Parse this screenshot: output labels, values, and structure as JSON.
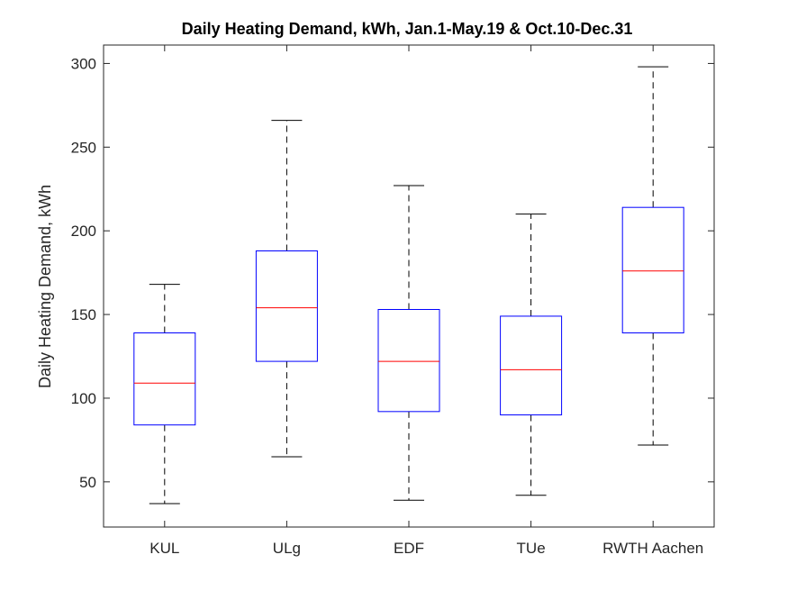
{
  "chart_data": {
    "type": "box",
    "title": "Daily Heating Demand, kWh, Jan.1-May.19 & Oct.10-Dec.31",
    "xlabel": "",
    "ylabel": "Daily Heating Demand, kWh",
    "ylim": [
      23,
      311
    ],
    "yticks": [
      50,
      100,
      150,
      200,
      250,
      300
    ],
    "ytick_labels": [
      "50",
      "100",
      "150",
      "200",
      "250",
      "300"
    ],
    "grid": false,
    "categories": [
      "KUL",
      "ULg",
      "EDF",
      "TUe",
      "RWTH Aachen"
    ],
    "boxes": [
      {
        "label": "KUL",
        "whisker_low": 37,
        "q1": 84,
        "median": 109,
        "q3": 139,
        "whisker_high": 168
      },
      {
        "label": "ULg",
        "whisker_low": 65,
        "q1": 122,
        "median": 154,
        "q3": 188,
        "whisker_high": 266
      },
      {
        "label": "EDF",
        "whisker_low": 39,
        "q1": 92,
        "median": 122,
        "q3": 153,
        "whisker_high": 227
      },
      {
        "label": "TUe",
        "whisker_low": 42,
        "q1": 90,
        "median": 117,
        "q3": 149,
        "whisker_high": 210
      },
      {
        "label": "RWTH Aachen",
        "whisker_low": 72,
        "q1": 139,
        "median": 176,
        "q3": 214,
        "whisker_high": 298
      }
    ],
    "colors": {
      "box": "#0000ff",
      "median": "#ff0000",
      "whisker": "#000000",
      "axis": "#262626"
    }
  }
}
